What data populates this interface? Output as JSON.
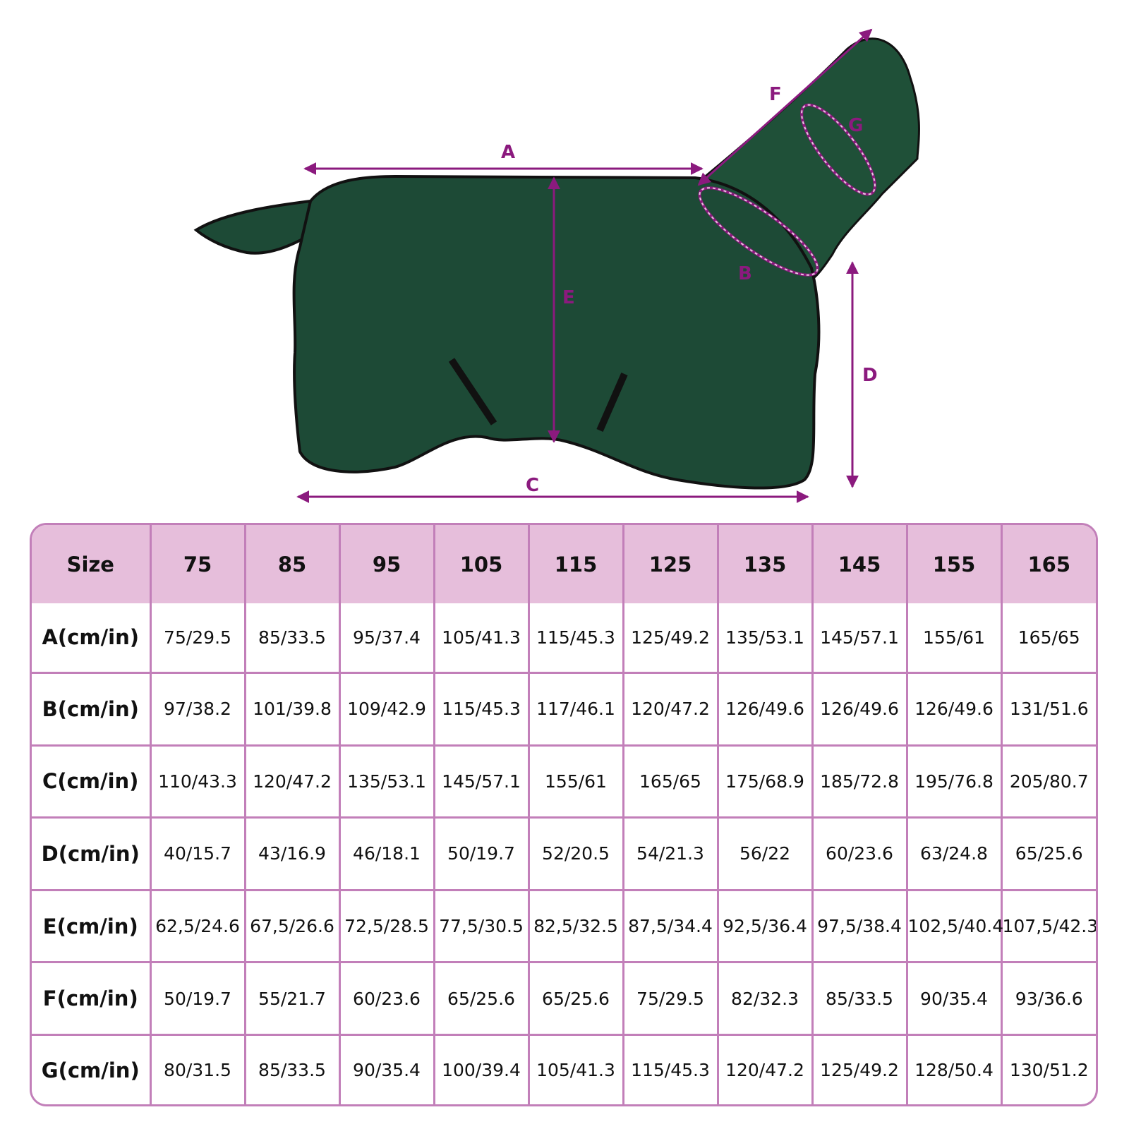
{
  "diagram": {
    "labels": {
      "A": "A",
      "B": "B",
      "C": "C",
      "D": "D",
      "E": "E",
      "F": "F",
      "G": "G"
    },
    "colors": {
      "coat": "#1d4a36",
      "trim": "#111111",
      "arrow": "#8b1a7e"
    }
  },
  "table": {
    "header": [
      "Size",
      "75",
      "85",
      "95",
      "105",
      "115",
      "125",
      "135",
      "145",
      "155",
      "165"
    ],
    "rows": [
      {
        "label": "A(cm/in)",
        "values": [
          "75/29.5",
          "85/33.5",
          "95/37.4",
          "105/41.3",
          "115/45.3",
          "125/49.2",
          "135/53.1",
          "145/57.1",
          "155/61",
          "165/65"
        ]
      },
      {
        "label": "B(cm/in)",
        "values": [
          "97/38.2",
          "101/39.8",
          "109/42.9",
          "115/45.3",
          "117/46.1",
          "120/47.2",
          "126/49.6",
          "126/49.6",
          "126/49.6",
          "131/51.6"
        ]
      },
      {
        "label": "C(cm/in)",
        "values": [
          "110/43.3",
          "120/47.2",
          "135/53.1",
          "145/57.1",
          "155/61",
          "165/65",
          "175/68.9",
          "185/72.8",
          "195/76.8",
          "205/80.7"
        ]
      },
      {
        "label": "D(cm/in)",
        "values": [
          "40/15.7",
          "43/16.9",
          "46/18.1",
          "50/19.7",
          "52/20.5",
          "54/21.3",
          "56/22",
          "60/23.6",
          "63/24.8",
          "65/25.6"
        ]
      },
      {
        "label": "E(cm/in)",
        "values": [
          "62,5/24.6",
          "67,5/26.6",
          "72,5/28.5",
          "77,5/30.5",
          "82,5/32.5",
          "87,5/34.4",
          "92,5/36.4",
          "97,5/38.4",
          "102,5/40.4",
          "107,5/42.3"
        ]
      },
      {
        "label": "F(cm/in)",
        "values": [
          "50/19.7",
          "55/21.7",
          "60/23.6",
          "65/25.6",
          "65/25.6",
          "75/29.5",
          "82/32.3",
          "85/33.5",
          "90/35.4",
          "93/36.6"
        ]
      },
      {
        "label": "G(cm/in)",
        "values": [
          "80/31.5",
          "85/33.5",
          "90/35.4",
          "100/39.4",
          "105/41.3",
          "115/45.3",
          "120/47.2",
          "125/49.2",
          "128/50.4",
          "130/51.2"
        ]
      }
    ]
  }
}
